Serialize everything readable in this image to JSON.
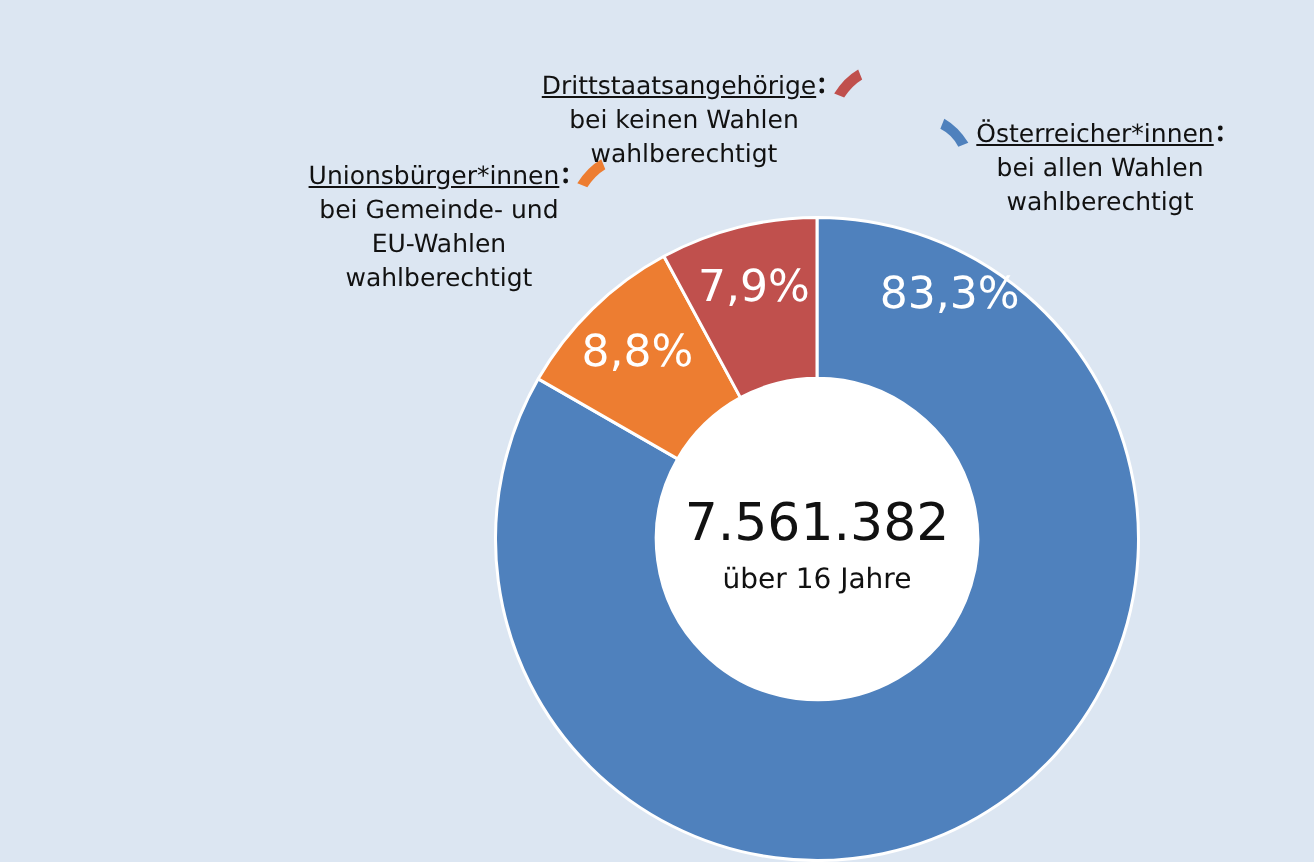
{
  "chart_data": {
    "type": "donut",
    "categories": [
      "Österreicher*innen",
      "Unionsbürger*innen",
      "Drittstaatsangehörige"
    ],
    "values": [
      83.3,
      8.8,
      7.9
    ],
    "colors": [
      "#4f81bd",
      "#ed7d31",
      "#c0504d"
    ],
    "value_labels": [
      "83,3%",
      "8,8%",
      "7,9%"
    ],
    "annotations": [
      "7.561.382",
      "über 16 Jahre",
      "bei allen Wahlen\nwahlberechtigt",
      "bei Gemeinde- und\nEU-Wahlen\nwahlberechtigt",
      "bei keinen Wahlen\nwahlberechtigt"
    ],
    "legend": "top"
  }
}
